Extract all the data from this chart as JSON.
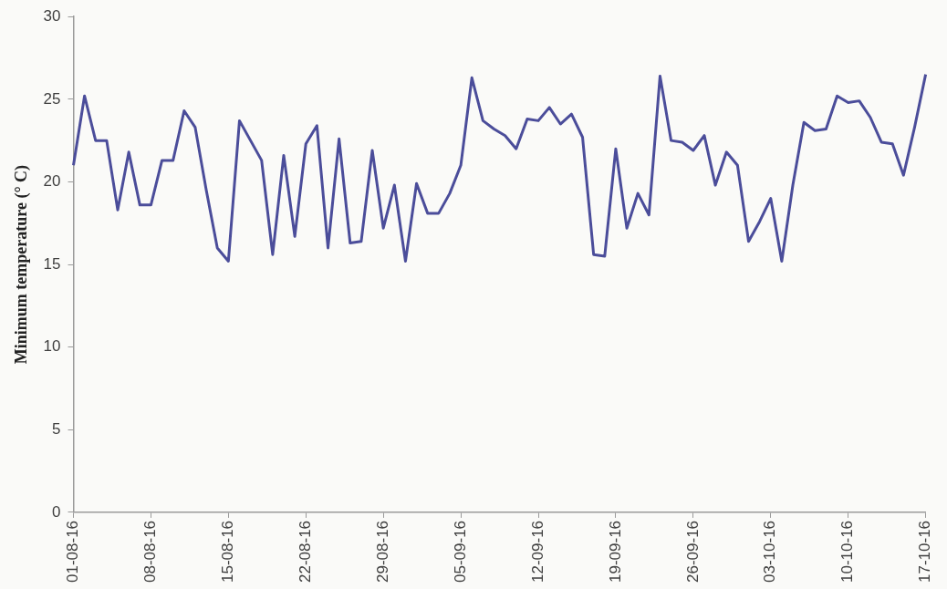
{
  "chart_data": {
    "type": "line",
    "ylabel": "Minimum temperature (° C)",
    "categories": [
      "01-08-16",
      null,
      null,
      null,
      null,
      null,
      null,
      "08-08-16",
      null,
      null,
      null,
      null,
      null,
      null,
      "15-08-16",
      null,
      null,
      null,
      null,
      null,
      null,
      "22-08-16",
      null,
      null,
      null,
      null,
      null,
      null,
      "29-08-16",
      null,
      null,
      null,
      null,
      null,
      null,
      "05-09-16",
      null,
      null,
      null,
      null,
      null,
      null,
      "12-09-16",
      null,
      null,
      null,
      null,
      null,
      null,
      "19-09-16",
      null,
      null,
      null,
      null,
      null,
      null,
      "26-09-16",
      null,
      null,
      null,
      null,
      null,
      null,
      "03-10-16",
      null,
      null,
      null,
      null,
      null,
      null,
      "10-10-16",
      null,
      null,
      null,
      null,
      null,
      null,
      "17-10-16"
    ],
    "series": [
      {
        "color": "#4b4d9a",
        "values": [
          21,
          25.2,
          22.5,
          22.5,
          18.3,
          21.8,
          18.6,
          18.6,
          21.3,
          21.3,
          24.3,
          23.3,
          19.5,
          16,
          15.2,
          23.7,
          22.5,
          21.3,
          15.6,
          21.6,
          16.7,
          22.3,
          23.4,
          16,
          22.6,
          16.3,
          16.4,
          21.9,
          17.2,
          19.8,
          15.2,
          19.9,
          18.1,
          18.1,
          19.3,
          21,
          26.3,
          23.7,
          23.2,
          22.8,
          22,
          23.8,
          23.7,
          24.5,
          23.5,
          24.1,
          22.7,
          15.6,
          15.5,
          22,
          17.2,
          19.3,
          18,
          26.4,
          22.5,
          22.4,
          21.9,
          22.8,
          19.8,
          21.8,
          21,
          16.4,
          17.6,
          19,
          15.2,
          19.8,
          23.6,
          23.1,
          23.2,
          25.2,
          24.8,
          24.9,
          23.9,
          22.4,
          22.3,
          20.4,
          23.3,
          26.5
        ]
      }
    ],
    "ylim": [
      0,
      30
    ],
    "yticks": [
      0,
      5,
      10,
      15,
      20,
      25,
      30
    ],
    "grid": false,
    "legend": false,
    "marker": "none",
    "line_style": "solid"
  }
}
